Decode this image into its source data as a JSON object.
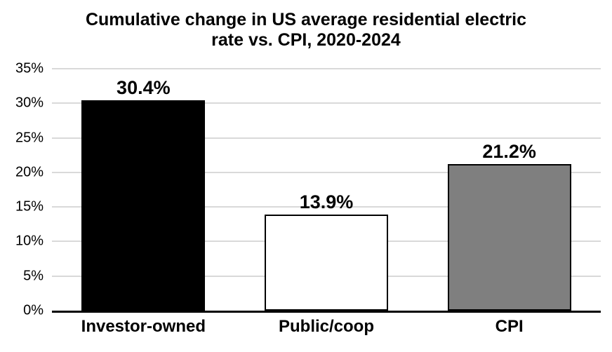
{
  "chart_data": {
    "type": "bar",
    "title": "Cumulative change in US average residential electric rate vs. CPI, 2020-2024",
    "title_lines": [
      "Cumulative change in US average residential electric",
      "rate vs. CPI, 2020-2024"
    ],
    "categories": [
      "Investor-owned",
      "Public/coop",
      "CPI"
    ],
    "values": [
      30.4,
      13.9,
      21.2
    ],
    "data_labels": [
      "30.4%",
      "13.9%",
      "21.2%"
    ],
    "xlabel": "",
    "ylabel": "",
    "ylim": [
      0,
      35
    ],
    "ytick_step": 5,
    "ytick_labels": [
      "0%",
      "5%",
      "10%",
      "15%",
      "20%",
      "25%",
      "30%",
      "35%"
    ],
    "grid": "horizontal",
    "legend": "none",
    "colors": {
      "bar_fills": [
        "#000000",
        "#ffffff",
        "#7f7f7f"
      ],
      "bar_border": "#000000",
      "gridline": "#d9d9d9",
      "axis_line": "#000000",
      "text": "#000000",
      "background": "#ffffff"
    }
  }
}
